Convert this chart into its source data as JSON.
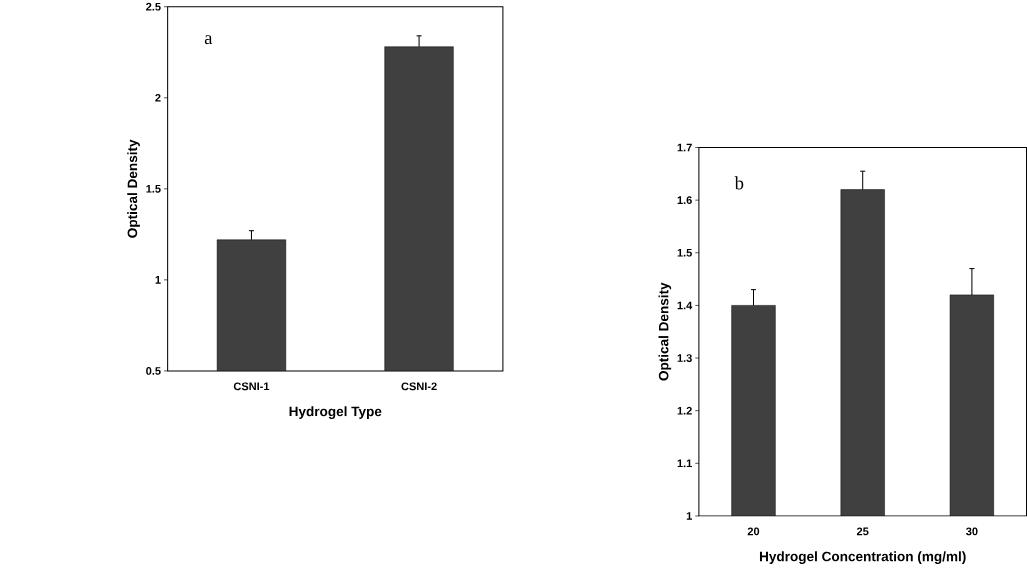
{
  "chart_data": [
    {
      "type": "bar",
      "xlabel": "Hydrogel Type",
      "ylabel": "Optical Density",
      "categories": [
        "CSNI-1",
        "CSNI-2"
      ],
      "values": [
        1.22,
        2.28
      ],
      "errors": [
        0.05,
        0.06
      ],
      "color": "#404040",
      "ylim": [
        0.5,
        2.5
      ],
      "yticks": [
        0.5,
        1,
        1.5,
        2,
        2.5
      ],
      "annotations": [
        "a"
      ]
    },
    {
      "type": "bar",
      "xlabel": "Hydrogel Concentration (mg/ml)",
      "ylabel": "Optical Density",
      "categories": [
        "20",
        "25",
        "30"
      ],
      "values": [
        1.4,
        1.62,
        1.42
      ],
      "errors": [
        0.03,
        0.035,
        0.05
      ],
      "color": "#404040",
      "ylim": [
        1,
        1.7
      ],
      "yticks": [
        1,
        1.1,
        1.2,
        1.3,
        1.4,
        1.5,
        1.6,
        1.7
      ],
      "annotations": [
        "b"
      ]
    }
  ]
}
